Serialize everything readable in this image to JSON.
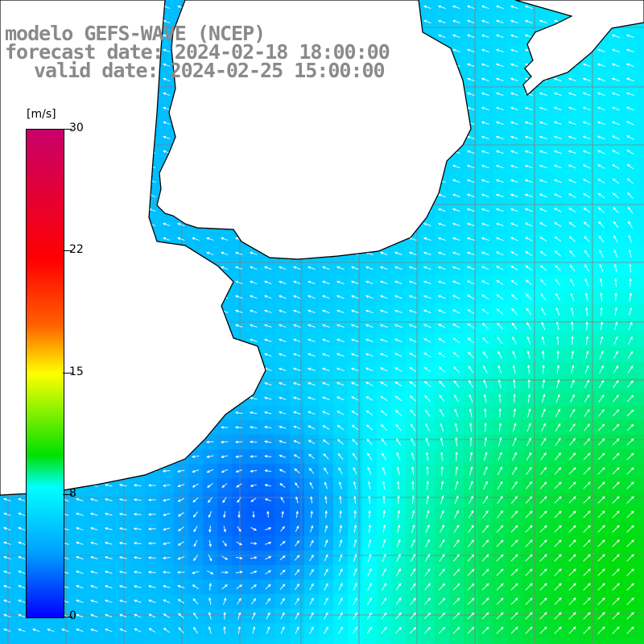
{
  "title": {
    "line1": "modelo GEFS-WAVE (NCEP)",
    "line2": "forecast date: 2024-02-18 18:00:00",
    "line3": "valid date: 2024-02-25 15:00:00"
  },
  "colorbar": {
    "unit": "[m/s]",
    "ticks": [
      "30",
      "22",
      "15",
      "8",
      "0"
    ],
    "tick_values": [
      30,
      22,
      15,
      8,
      0
    ],
    "range": [
      0,
      30
    ],
    "colors": [
      "#0000ff",
      "#00a0ff",
      "#00ffff",
      "#00e000",
      "#ffff00",
      "#ff6000",
      "#ff0000",
      "#c8006a"
    ]
  },
  "map": {
    "land_color": "#ffffff",
    "coast_color": "#000000",
    "grid_color": "#7f7f7f",
    "arrow_color": "#ffffff",
    "grid": true
  }
}
